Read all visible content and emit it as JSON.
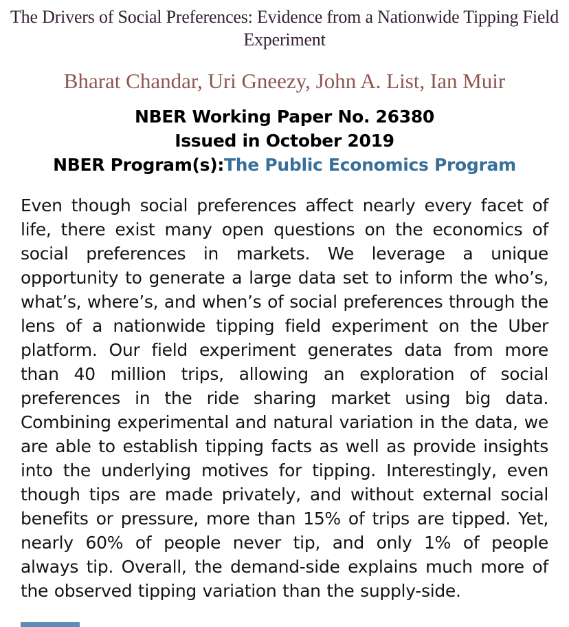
{
  "page": {
    "title": "The Drivers of Social Preferences: Evidence from a Nationwide Tipping Field Experiment",
    "authors": "Bharat Chandar, Uri Gneezy, John A. List, Ian Muir",
    "working_paper_number": "NBER Working Paper No. 26380",
    "issued_date": "Issued in October 2019",
    "programs_label": "NBER Program(s):",
    "program_link": "The Public Economics Program",
    "abstract": "Even though social preferences affect nearly every facet of life, there exist many open questions on the economics of social preferences in markets. We leverage a unique opportunity to generate a large data set to inform the who’s, what’s, where’s, and when’s of social preferences through the lens of a nationwide tipping field experiment on the Uber platform. Our field experiment generates data from more than 40 million trips, allowing an exploration of social preferences in the ride sharing market using big data. Combining experimental and natural variation in the data, we are able to establish tipping facts as well as provide insights into the underlying motives for tipping. Interestingly, even though tips are made privately, and without external social benefits or pressure, more than 15% of trips are tipped. Yet, nearly 60% of people never tip, and only 1% of people always tip. Overall, the demand-side explains much more of the observed tipping variation than the supply-side.",
    "colors": {
      "title": "#331e33",
      "authors": "#8d564e",
      "program_link": "#38709b",
      "body_text": "#141414",
      "cutoff_link_fragment": "#4179a8"
    }
  }
}
